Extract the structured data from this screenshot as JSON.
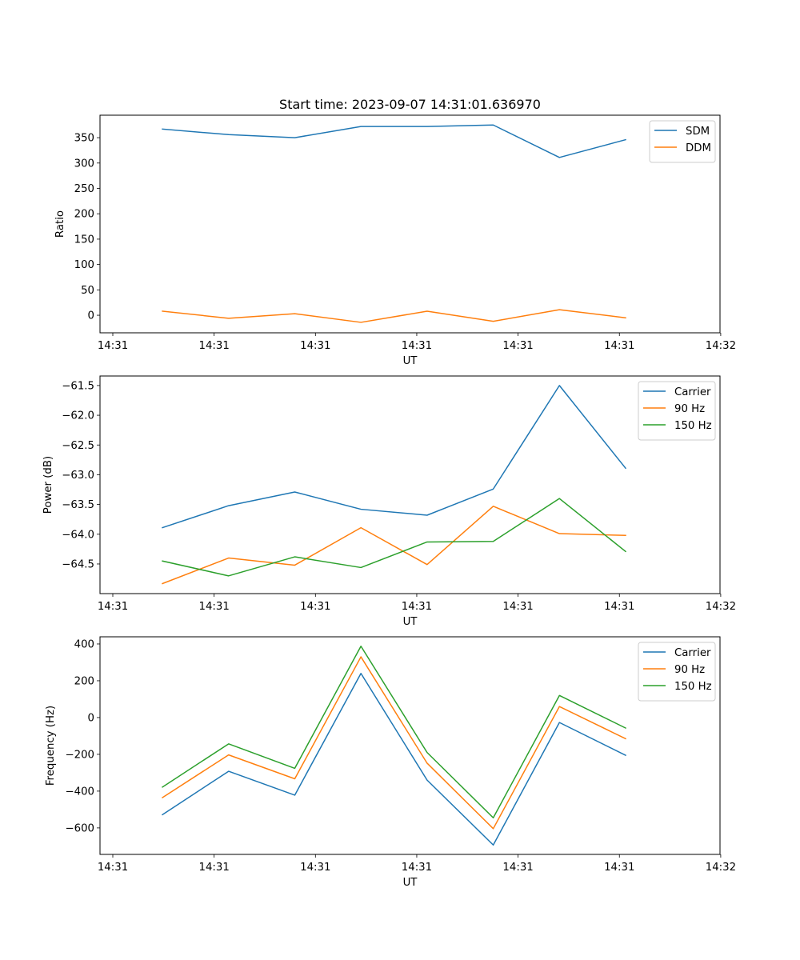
{
  "figure_title": "Start time: 2023-09-07 14:31:01.636970",
  "chart_data": [
    {
      "type": "line",
      "title": "Start time: 2023-09-07 14:31:01.636970",
      "xlabel": "UT",
      "ylabel": "Ratio",
      "xticks": [
        "14:31",
        "14:31",
        "14:31",
        "14:31",
        "14:31",
        "14:31",
        "14:32"
      ],
      "xlim": [
        -0.12,
        6.0
      ],
      "x": [
        0.49,
        1.143,
        1.796,
        2.449,
        3.102,
        3.755,
        4.408,
        5.061
      ],
      "yticks": [
        0,
        50,
        100,
        150,
        200,
        250,
        300,
        350
      ],
      "ylim": [
        -34.6,
        394.3
      ],
      "grid": false,
      "legend_position": "upper-right",
      "series": [
        {
          "name": "SDM",
          "color": "#1f77b4",
          "values": [
            367,
            356,
            350,
            372,
            372,
            375,
            311,
            346
          ]
        },
        {
          "name": "DDM",
          "color": "#ff7f0e",
          "values": [
            8,
            -6,
            3,
            -14,
            8,
            -12,
            11,
            -5
          ]
        }
      ]
    },
    {
      "type": "line",
      "title": "",
      "xlabel": "UT",
      "ylabel": "Power (dB)",
      "xticks": [
        "14:31",
        "14:31",
        "14:31",
        "14:31",
        "14:31",
        "14:31",
        "14:32"
      ],
      "xlim": [
        -0.12,
        6.0
      ],
      "x": [
        0.49,
        1.143,
        1.796,
        2.449,
        3.102,
        3.755,
        4.408,
        5.061
      ],
      "yticks": [
        -64.5,
        -64.0,
        -63.5,
        -63.0,
        -62.5,
        -62.0,
        -61.5
      ],
      "ytick_labels": [
        "−64.5",
        "−64.0",
        "−63.5",
        "−63.0",
        "−62.5",
        "−62.0",
        "−61.5"
      ],
      "ylim": [
        -64.998,
        -61.34
      ],
      "grid": false,
      "legend_position": "upper-right",
      "series": [
        {
          "name": "Carrier",
          "color": "#1f77b4",
          "values": [
            -63.89,
            -63.52,
            -63.29,
            -63.58,
            -63.68,
            -63.24,
            -61.5,
            -62.89
          ]
        },
        {
          "name": "90 Hz",
          "color": "#ff7f0e",
          "values": [
            -64.83,
            -64.4,
            -64.52,
            -63.89,
            -64.51,
            -63.53,
            -63.99,
            -64.02
          ]
        },
        {
          "name": "150 Hz",
          "color": "#2ca02c",
          "values": [
            -64.45,
            -64.7,
            -64.38,
            -64.56,
            -64.13,
            -64.12,
            -63.4,
            -64.29
          ]
        }
      ]
    },
    {
      "type": "line",
      "title": "",
      "xlabel": "UT",
      "ylabel": "Frequency (Hz)",
      "xticks": [
        "14:31",
        "14:31",
        "14:31",
        "14:31",
        "14:31",
        "14:31",
        "14:32"
      ],
      "xlim": [
        -0.12,
        6.0
      ],
      "x": [
        0.49,
        1.143,
        1.796,
        2.449,
        3.102,
        3.755,
        4.408,
        5.061
      ],
      "yticks": [
        -600,
        -400,
        -200,
        0,
        200,
        400
      ],
      "ytick_labels": [
        "−600",
        "−400",
        "−200",
        "0",
        "200",
        "400"
      ],
      "ylim": [
        -744,
        439
      ],
      "grid": false,
      "legend_position": "upper-right",
      "series": [
        {
          "name": "Carrier",
          "color": "#1f77b4",
          "values": [
            -528,
            -292,
            -422,
            240,
            -340,
            -693,
            -27,
            -205
          ]
        },
        {
          "name": "90 Hz",
          "color": "#ff7f0e",
          "values": [
            -435,
            -203,
            -333,
            330,
            -248,
            -604,
            60,
            -115
          ]
        },
        {
          "name": "150 Hz",
          "color": "#2ca02c",
          "values": [
            -378,
            -143,
            -276,
            388,
            -190,
            -545,
            120,
            -57
          ]
        }
      ]
    }
  ]
}
